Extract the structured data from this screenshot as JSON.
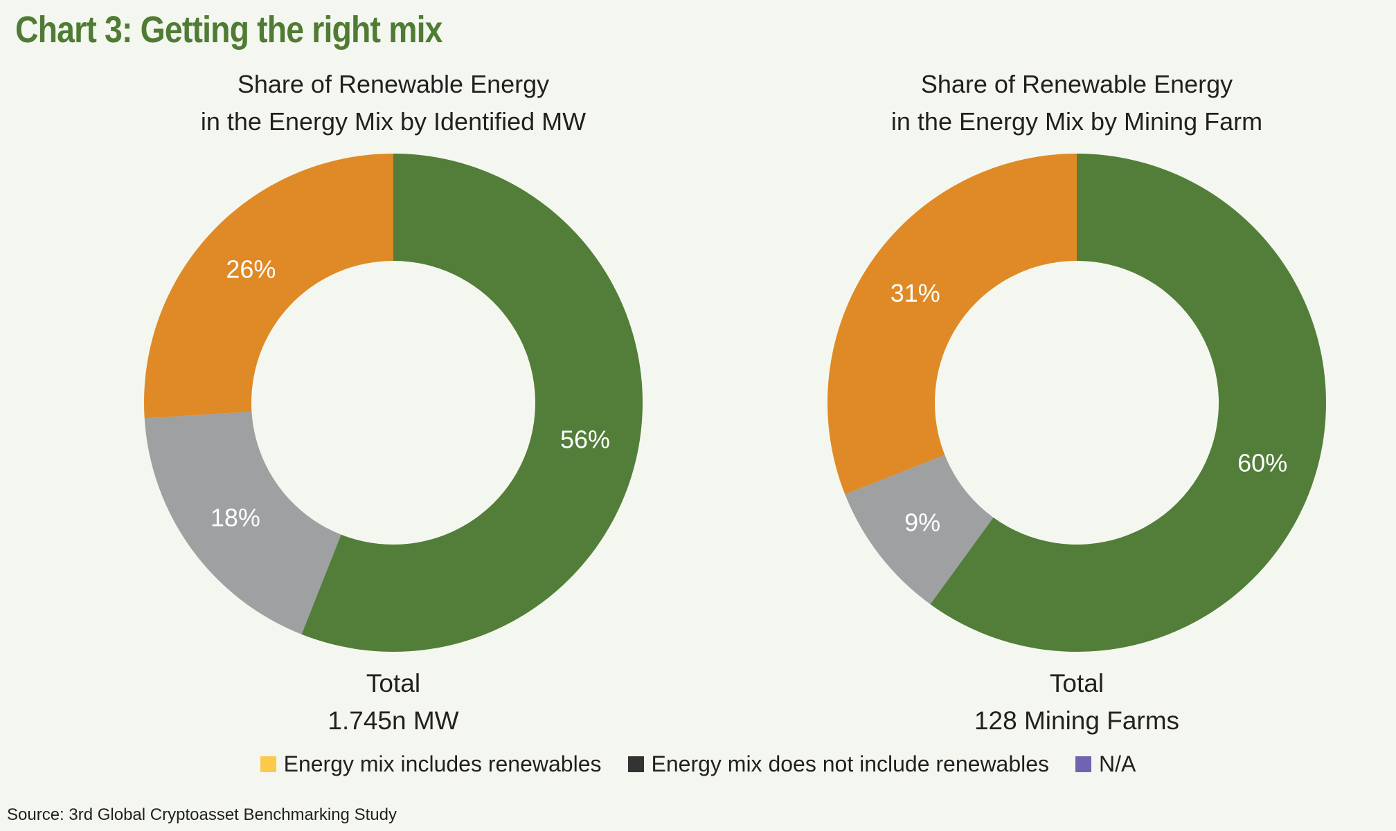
{
  "title": "Chart 3: Getting the right mix",
  "source": "Source: 3rd Global Cryptoasset Benchmarking Study",
  "colors": {
    "green": "#527e39",
    "orange": "#df8a26",
    "grey": "#9ea0a2",
    "title_green": "#4f7b34",
    "legend_yellow": "#fcc94b",
    "legend_black": "#333333",
    "legend_purple": "#7064b0"
  },
  "legend": [
    {
      "label": "Energy mix includes renewables",
      "color": "#fcc94b"
    },
    {
      "label": "Energy mix does not include renewables",
      "color": "#333333"
    },
    {
      "label": "N/A",
      "color": "#7064b0"
    }
  ],
  "chart_data": [
    {
      "type": "pie",
      "style": "donut",
      "title_lines": [
        "Share of Renewable Energy",
        "in the Energy Mix by Identified MW"
      ],
      "total_lines": [
        "Total",
        "1.745n MW"
      ],
      "slices": [
        {
          "label": "56%",
          "value": 56,
          "color": "#527e39"
        },
        {
          "label": "18%",
          "value": 18,
          "color": "#9ea0a2"
        },
        {
          "label": "26%",
          "value": 26,
          "color": "#df8a26"
        }
      ]
    },
    {
      "type": "pie",
      "style": "donut",
      "title_lines": [
        "Share of Renewable Energy",
        "in the Energy Mix by Mining Farm"
      ],
      "total_lines": [
        "Total",
        "128 Mining Farms"
      ],
      "slices": [
        {
          "label": "60%",
          "value": 60,
          "color": "#527e39"
        },
        {
          "label": "9%",
          "value": 9,
          "color": "#9ea0a2"
        },
        {
          "label": "31%",
          "value": 31,
          "color": "#df8a26"
        }
      ]
    }
  ]
}
